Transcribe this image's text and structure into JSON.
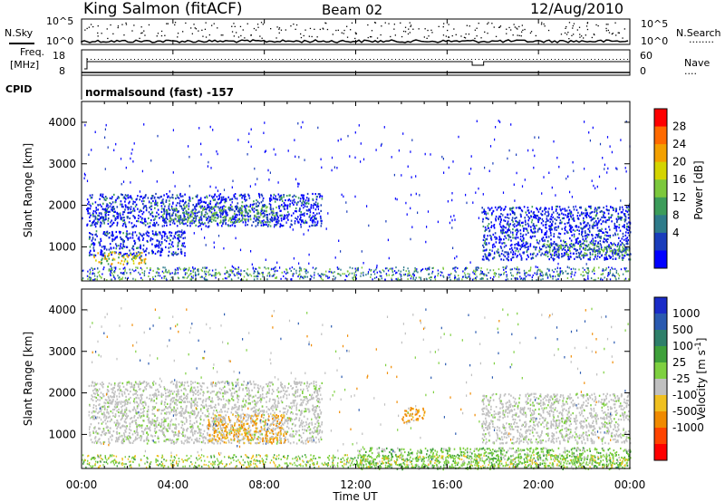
{
  "header": {
    "station": "King Salmon (fitACF)",
    "beam": "Beam 02",
    "date": "12/Aug/2010"
  },
  "noise_panel": {
    "left_label": "N.Sky",
    "right_label": "N.Search",
    "right_dots": "........",
    "left_ticks": [
      "10^5",
      "10^0"
    ],
    "right_ticks": [
      "10^5",
      "10^0"
    ]
  },
  "freq_panel": {
    "left_label_1": "Freq.",
    "left_label_2": "[MHz]",
    "left_ticks": [
      "18",
      "8"
    ],
    "right_label": "Nave",
    "right_dots": "....",
    "right_ticks": [
      "60",
      "0"
    ]
  },
  "cpid": {
    "label": "CPID",
    "text": "normalsound (fast) -157"
  },
  "x_axis": {
    "label": "Time UT",
    "ticks": [
      "00:00",
      "04:00",
      "08:00",
      "12:00",
      "16:00",
      "20:00",
      "00:00"
    ]
  },
  "power_panel": {
    "ylabel": "Slant Range [km]",
    "yticks": [
      "4000",
      "3000",
      "2000",
      "1000"
    ],
    "colorbar_label": "Power [dB]",
    "colorbar_ticks": [
      "28",
      "24",
      "20",
      "16",
      "12",
      "8",
      "4"
    ],
    "colors": [
      "#0000ff",
      "#1a3dbb",
      "#2e7b8a",
      "#3c9c5a",
      "#7cc83c",
      "#d4d400",
      "#f3a000",
      "#ff6a00",
      "#ff0000"
    ]
  },
  "velocity_panel": {
    "ylabel": "Slant Range [km]",
    "yticks": [
      "4000",
      "3000",
      "2000",
      "1000"
    ],
    "colorbar_label": "Velocity [m s",
    "colorbar_label_sup": "-1",
    "colorbar_label_end": "]",
    "colorbar_ticks": [
      "1000",
      "500",
      "100",
      "25",
      "-25",
      "-100",
      "-500",
      "-1000"
    ],
    "colors": [
      "#1a2cc8",
      "#2a5ab0",
      "#2e7f6a",
      "#3ea03a",
      "#7ed040",
      "#c0c0c0",
      "#f0c020",
      "#f08a00",
      "#ff4400",
      "#ff0000"
    ]
  },
  "chart_data": {
    "type": "heatmap",
    "x_range_hours": [
      0,
      24
    ],
    "y_range_km": [
      180,
      4500
    ],
    "power_regions": [
      {
        "t0": 0.2,
        "t1": 10.5,
        "r0": 1500,
        "r1": 2300,
        "level": "low"
      },
      {
        "t0": 3.5,
        "t1": 8.5,
        "r0": 1600,
        "r1": 2000,
        "level": "mid"
      },
      {
        "t0": 0.3,
        "t1": 4.5,
        "r0": 800,
        "r1": 1400,
        "level": "low"
      },
      {
        "t0": 0.5,
        "t1": 2.8,
        "r0": 600,
        "r1": 900,
        "level": "high"
      },
      {
        "t0": 17.5,
        "t1": 24,
        "r0": 700,
        "r1": 2000,
        "level": "low"
      },
      {
        "t0": 20,
        "t1": 24,
        "r0": 800,
        "r1": 1100,
        "level": "mid"
      }
    ],
    "velocity_regions": [
      {
        "t0": 0.3,
        "t1": 10.5,
        "r0": 800,
        "r1": 2300,
        "value_ms": 0
      },
      {
        "t0": 5.5,
        "t1": 9.0,
        "r0": 800,
        "r1": 1500,
        "value_ms": -200
      },
      {
        "t0": 14.0,
        "t1": 15.0,
        "r0": 1300,
        "r1": 1700,
        "value_ms": -200
      },
      {
        "t0": 17.5,
        "t1": 24,
        "r0": 800,
        "r1": 2000,
        "value_ms": 0
      },
      {
        "t0": 12.0,
        "t1": 24,
        "r0": 180,
        "r1": 700,
        "value_ms": 150
      }
    ]
  }
}
